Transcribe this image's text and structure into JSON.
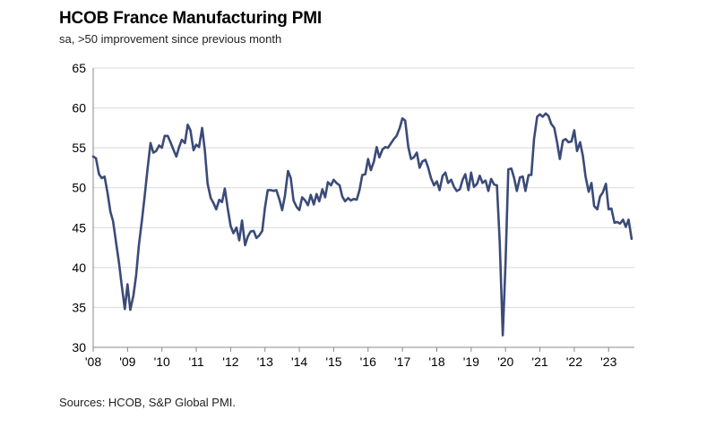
{
  "chart_data": {
    "type": "line",
    "title": "HCOB France Manufacturing PMI",
    "subtitle": "sa, >50 improvement since previous month",
    "source": "Sources: HCOB, S&P Global PMI.",
    "xlabel": "",
    "ylabel": "",
    "ylim": [
      30,
      65
    ],
    "yticks": [
      30,
      35,
      40,
      45,
      50,
      55,
      60,
      65
    ],
    "xlim": [
      2008.0,
      2023.75
    ],
    "xticks": [
      {
        "x": 2008,
        "label": "'08"
      },
      {
        "x": 2009,
        "label": "'09"
      },
      {
        "x": 2010,
        "label": "'10"
      },
      {
        "x": 2011,
        "label": "'11"
      },
      {
        "x": 2012,
        "label": "'12"
      },
      {
        "x": 2013,
        "label": "'13"
      },
      {
        "x": 2014,
        "label": "'14"
      },
      {
        "x": 2015,
        "label": "'15"
      },
      {
        "x": 2016,
        "label": "'16"
      },
      {
        "x": 2017,
        "label": "'17"
      },
      {
        "x": 2018,
        "label": "'18"
      },
      {
        "x": 2019,
        "label": "'19"
      },
      {
        "x": 2020,
        "label": "'20"
      },
      {
        "x": 2021,
        "label": "'21"
      },
      {
        "x": 2022,
        "label": "'22"
      },
      {
        "x": 2023,
        "label": "'23"
      }
    ],
    "grid": true,
    "line_color": "#3b4b78",
    "series": [
      {
        "name": "Manufacturing PMI",
        "x": [
          2008.0,
          2008.08,
          2008.17,
          2008.25,
          2008.33,
          2008.42,
          2008.5,
          2008.58,
          2008.67,
          2008.75,
          2008.83,
          2008.92,
          2009.0,
          2009.08,
          2009.17,
          2009.25,
          2009.33,
          2009.42,
          2009.5,
          2009.58,
          2009.67,
          2009.75,
          2009.83,
          2009.92,
          2010.0,
          2010.08,
          2010.17,
          2010.25,
          2010.33,
          2010.42,
          2010.5,
          2010.58,
          2010.67,
          2010.75,
          2010.83,
          2010.92,
          2011.0,
          2011.08,
          2011.17,
          2011.25,
          2011.33,
          2011.42,
          2011.5,
          2011.58,
          2011.67,
          2011.75,
          2011.83,
          2011.92,
          2012.0,
          2012.08,
          2012.17,
          2012.25,
          2012.33,
          2012.42,
          2012.5,
          2012.58,
          2012.67,
          2012.75,
          2012.83,
          2012.92,
          2013.0,
          2013.08,
          2013.17,
          2013.25,
          2013.33,
          2013.42,
          2013.5,
          2013.58,
          2013.67,
          2013.75,
          2013.83,
          2013.92,
          2014.0,
          2014.08,
          2014.17,
          2014.25,
          2014.33,
          2014.42,
          2014.5,
          2014.58,
          2014.67,
          2014.75,
          2014.83,
          2014.92,
          2015.0,
          2015.08,
          2015.17,
          2015.25,
          2015.33,
          2015.42,
          2015.5,
          2015.58,
          2015.67,
          2015.75,
          2015.83,
          2015.92,
          2016.0,
          2016.08,
          2016.17,
          2016.25,
          2016.33,
          2016.42,
          2016.5,
          2016.58,
          2016.67,
          2016.75,
          2016.83,
          2016.92,
          2017.0,
          2017.08,
          2017.17,
          2017.25,
          2017.33,
          2017.42,
          2017.5,
          2017.58,
          2017.67,
          2017.75,
          2017.83,
          2017.92,
          2018.0,
          2018.08,
          2018.17,
          2018.25,
          2018.33,
          2018.42,
          2018.5,
          2018.58,
          2018.67,
          2018.75,
          2018.83,
          2018.92,
          2019.0,
          2019.08,
          2019.17,
          2019.25,
          2019.33,
          2019.42,
          2019.5,
          2019.58,
          2019.67,
          2019.75,
          2019.83,
          2019.92,
          2020.0,
          2020.08,
          2020.17,
          2020.25,
          2020.33,
          2020.42,
          2020.5,
          2020.58,
          2020.67,
          2020.75,
          2020.83,
          2020.92,
          2021.0,
          2021.08,
          2021.17,
          2021.25,
          2021.33,
          2021.42,
          2021.5,
          2021.58,
          2021.67,
          2021.75,
          2021.83,
          2021.92,
          2022.0,
          2022.08,
          2022.17,
          2022.25,
          2022.33,
          2022.42,
          2022.5,
          2022.58,
          2022.67,
          2022.75,
          2022.83,
          2022.92,
          2023.0,
          2023.08,
          2023.17,
          2023.25,
          2023.33,
          2023.42,
          2023.5,
          2023.58,
          2023.67
        ],
        "values": [
          53.9,
          53.7,
          51.7,
          51.2,
          51.4,
          49.3,
          47.0,
          45.8,
          43.0,
          40.6,
          37.8,
          34.8,
          37.9,
          34.7,
          36.5,
          39.0,
          42.8,
          46.0,
          49.0,
          52.3,
          55.6,
          54.4,
          54.6,
          55.3,
          55.0,
          56.5,
          56.5,
          55.7,
          54.8,
          53.9,
          55.1,
          56.0,
          55.6,
          57.9,
          57.2,
          54.7,
          55.4,
          55.1,
          57.5,
          54.7,
          50.5,
          48.7,
          48.1,
          47.3,
          48.5,
          48.2,
          49.9,
          47.3,
          45.2,
          44.3,
          45.0,
          43.4,
          45.9,
          42.8,
          43.9,
          44.5,
          44.6,
          43.7,
          44.0,
          44.6,
          47.5,
          49.7,
          49.7,
          49.6,
          49.7,
          48.5,
          47.2,
          49.0,
          52.1,
          51.2,
          48.4,
          47.6,
          47.2,
          48.8,
          48.4,
          47.8,
          49.1,
          47.9,
          49.2,
          48.3,
          49.8,
          48.8,
          50.7,
          50.3,
          51.0,
          50.6,
          50.3,
          48.9,
          48.3,
          48.7,
          48.4,
          48.6,
          48.5,
          49.7,
          51.6,
          51.7,
          53.6,
          52.2,
          53.3,
          55.1,
          53.8,
          54.8,
          55.1,
          55.0,
          55.6,
          56.1,
          56.5,
          57.5,
          58.7,
          58.4,
          55.1,
          53.6,
          53.8,
          54.4,
          52.5,
          53.3,
          53.5,
          52.5,
          51.2,
          50.3,
          50.8,
          49.7,
          51.5,
          51.9,
          50.6,
          51.0,
          50.1,
          49.6,
          49.8,
          51.0,
          51.7,
          49.7,
          51.9,
          50.1,
          50.5,
          51.5,
          50.6,
          50.9,
          49.6,
          51.1,
          50.4,
          50.3,
          43.2,
          31.5,
          40.6,
          52.3,
          52.4,
          51.2,
          49.6,
          51.3,
          51.4,
          49.6,
          51.6,
          51.6,
          56.1,
          58.9,
          59.2,
          58.9,
          59.3,
          59.0,
          58.0,
          57.5,
          55.7,
          53.6,
          55.9,
          56.1,
          55.7,
          55.8,
          57.2,
          54.6,
          55.7,
          54.0,
          51.4,
          49.5,
          50.6,
          47.7,
          47.3,
          48.9,
          49.4,
          50.5,
          47.3,
          47.4,
          45.6,
          45.7,
          45.5,
          46.0,
          45.1,
          46.0,
          43.6
        ]
      }
    ]
  }
}
